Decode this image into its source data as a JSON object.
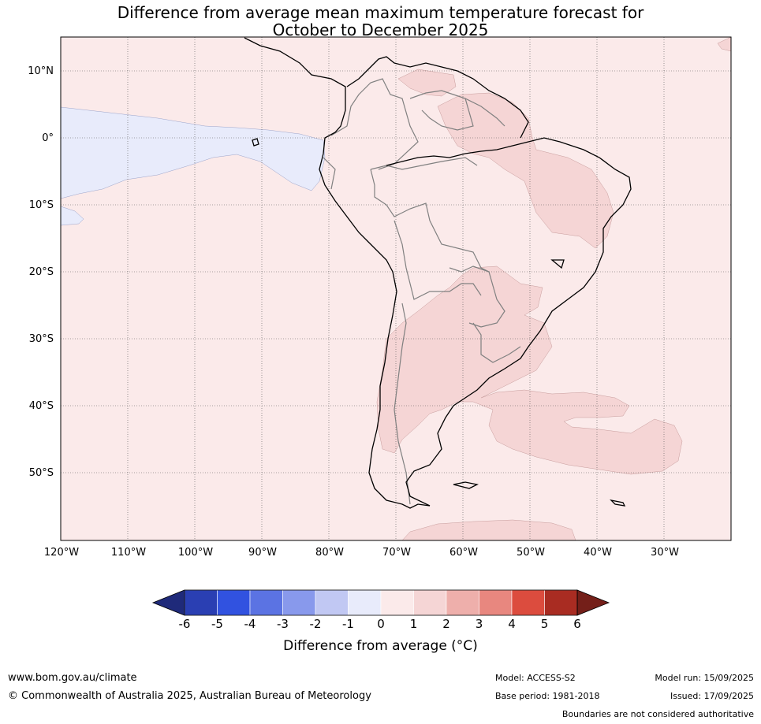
{
  "title_line1": "Difference from average mean maximum temperature forecast for",
  "title_line2": "October to December 2025",
  "lat_labels": [
    "10°N",
    "0°",
    "10°S",
    "20°S",
    "30°S",
    "40°S",
    "50°S"
  ],
  "lon_labels": [
    "120°W",
    "110°W",
    "100°W",
    "90°W",
    "80°W",
    "70°W",
    "60°W",
    "50°W",
    "40°W",
    "30°W"
  ],
  "colorbar": {
    "ticks": [
      "-6",
      "-5",
      "-4",
      "-3",
      "-2",
      "-1",
      "0",
      "1",
      "2",
      "3",
      "4",
      "5",
      "6"
    ],
    "colors": [
      "#1f2a7a",
      "#2a3fb3",
      "#3152e0",
      "#5b73e3",
      "#8899ec",
      "#c1c8f3",
      "#e8ebfb",
      "#fbeaea",
      "#f5d5d5",
      "#eeafab",
      "#e8877f",
      "#dc4c3e",
      "#a92c22",
      "#741f19"
    ],
    "label": "Difference from average (°C)"
  },
  "map_colors": {
    "background": "#fbeaea",
    "cool_anomaly": "#e8ebfb",
    "warm_anomaly": "#f5d5d5"
  },
  "footer": {
    "website": "www.bom.gov.au/climate",
    "copyright": "© Commonwealth of Australia 2025, Australian Bureau of Meteorology",
    "model": "Model: ACCESS-S2",
    "base_period": "Base period: 1981-2018",
    "model_run": "Model run: 15/09/2025",
    "issued": "Issued: 17/09/2025",
    "disclaimer": "Boundaries are not considered authoritative"
  }
}
